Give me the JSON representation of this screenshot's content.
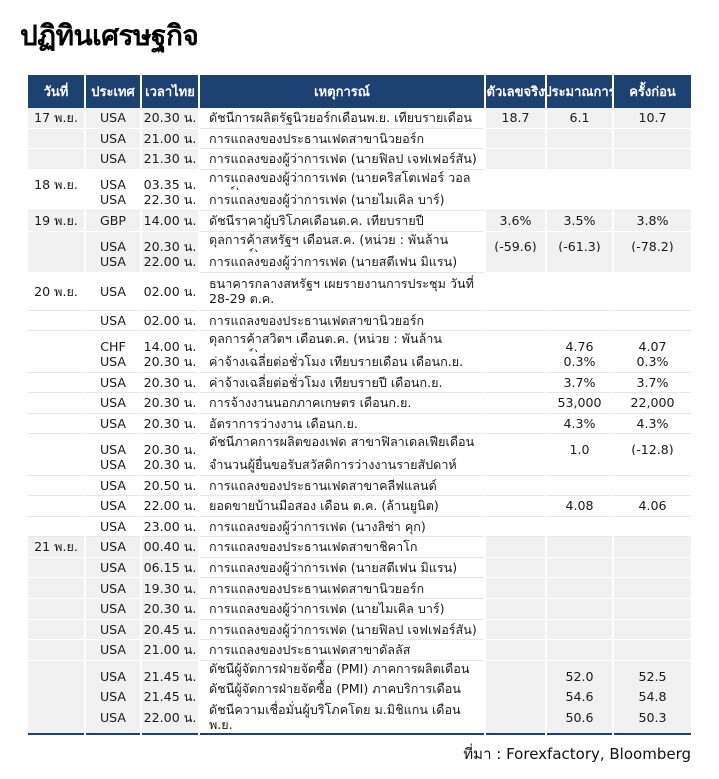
{
  "page": {
    "title": "ปฏิทินเศรษฐกิจ",
    "source": "ที่มา : Forexfactory, Bloomberg"
  },
  "colors": {
    "header_bg": "#1d4272",
    "shaded_row": "#f1f1f1",
    "row_separator": "#e7e7e7",
    "text": "#1a1a1a"
  },
  "table": {
    "columns": [
      {
        "key": "date",
        "label": "วันที่"
      },
      {
        "key": "country",
        "label": "ประเทศ"
      },
      {
        "key": "time",
        "label": "เวลาไทย"
      },
      {
        "key": "event",
        "label": "เหตุการณ์"
      },
      {
        "key": "actual",
        "label": "ตัวเลขจริง"
      },
      {
        "key": "forecast",
        "label": "ประมาณการ"
      },
      {
        "key": "previous",
        "label": "ครั้งก่อน"
      }
    ],
    "rows": [
      {
        "date": "17 พ.ย.",
        "country": "USA",
        "time": "20.30 น.",
        "event": "ดัชนีการผลิตรัฐนิวยอร์กเดือนพ.ย. เทียบรายเดือน",
        "actual": "18.7",
        "forecast": "6.1",
        "previous": "10.7"
      },
      {
        "date": "",
        "country": "USA",
        "time": "21.00 น.",
        "event": "การแถลงของประธานเฟดสาขานิวยอร์ก",
        "actual": "",
        "forecast": "",
        "previous": ""
      },
      {
        "date": "",
        "country": "USA",
        "time": "21.30 น.",
        "event": "การแถลงของผู้ว่าการเฟด (นายฟิลป เจฟเฟอร์สัน)",
        "actual": "",
        "forecast": "",
        "previous": ""
      },
      {
        "date": "18 พ.ย.",
        "country": "USA",
        "time": "03.35 น.",
        "event": "การแถลงของผู้ว่าการเฟด (นายคริสโตเฟอร์ วอลเลอร์)",
        "actual": "",
        "forecast": "",
        "previous": ""
      },
      {
        "date": "",
        "country": "USA",
        "time": "22.30 น.",
        "event": "การแถลงของผู้ว่าการเฟด (นายไมเคิล บาร์)",
        "actual": "",
        "forecast": "",
        "previous": ""
      },
      {
        "date": "19 พ.ย.",
        "country": "GBP",
        "time": "14.00 น.",
        "event": "ดัชนีราคาผู้บริโภคเดือนต.ค. เทียบรายปี",
        "actual": "3.6%",
        "forecast": "3.5%",
        "previous": "3.8%"
      },
      {
        "date": "",
        "country": "USA",
        "time": "20.30 น.",
        "event": "ดุลการค้าสหรัฐฯ เดือนส.ค. (หน่วย : พันล้านดอลลาร์)",
        "actual": "(-59.6)",
        "forecast": "(-61.3)",
        "previous": "(-78.2)"
      },
      {
        "date": "",
        "country": "USA",
        "time": "22.00 น.",
        "event": "การแถลงของผู้ว่าการเฟด (นายสตีเฟน มิแรน)",
        "actual": "",
        "forecast": "",
        "previous": ""
      },
      {
        "date": "20 พ.ย.",
        "country": "USA",
        "time": "02.00 น.",
        "event": "ธนาคารกลางสหรัฐฯ เผยรายงานการประชุม วันที่\n28-29 ต.ค.",
        "actual": "",
        "forecast": "",
        "previous": ""
      },
      {
        "date": "",
        "country": "USA",
        "time": "02.00 น.",
        "event": "การแถลงของประธานเฟดสาขานิวยอร์ก",
        "actual": "",
        "forecast": "",
        "previous": ""
      },
      {
        "date": "",
        "country": "CHF",
        "time": "14.00 น.",
        "event": "ดุลการค้าสวิตฯ เดือนต.ค. (หน่วย : พันล้านดอลลาร์)",
        "actual": "",
        "forecast": "4.76",
        "previous": "4.07"
      },
      {
        "date": "",
        "country": "USA",
        "time": "20.30 น.",
        "event": "ค่าจ้างเฉลี่ยต่อชั่วโมง เทียบรายเดือน เดือนก.ย.",
        "actual": "",
        "forecast": "0.3%",
        "previous": "0.3%"
      },
      {
        "date": "",
        "country": "USA",
        "time": "20.30 น.",
        "event": "ค่าจ้างเฉลี่ยต่อชั่วโมง เทียบรายปี เดือนก.ย.",
        "actual": "",
        "forecast": "3.7%",
        "previous": "3.7%"
      },
      {
        "date": "",
        "country": "USA",
        "time": "20.30 น.",
        "event": "การจ้างงานนอกภาคเกษตร เดือนก.ย.",
        "actual": "",
        "forecast": "53,000",
        "previous": "22,000"
      },
      {
        "date": "",
        "country": "USA",
        "time": "20.30 น.",
        "event": "อัตราการว่างงาน เดือนก.ย.",
        "actual": "",
        "forecast": "4.3%",
        "previous": "4.3%"
      },
      {
        "date": "",
        "country": "USA",
        "time": "20.30 น.",
        "event": "ดัชนีภาคการผลิตของเฟด สาขาฟิลาเดลเฟียเดือน พ.ย.",
        "actual": "",
        "forecast": "1.0",
        "previous": "(-12.8)"
      },
      {
        "date": "",
        "country": "USA",
        "time": "20.30 น.",
        "event": "จำนวนผู้ยื่นขอรับสวัสดิการว่างงานรายสัปดาห์",
        "actual": "",
        "forecast": "",
        "previous": ""
      },
      {
        "date": "",
        "country": "USA",
        "time": "20.50 น.",
        "event": "การแถลงของประธานเฟดสาขาคลีฟแลนด์",
        "actual": "",
        "forecast": "",
        "previous": ""
      },
      {
        "date": "",
        "country": "USA",
        "time": "22.00 น.",
        "event": "ยอดขายบ้านมือสอง เดือน ต.ค. (ล้านยูนิต)",
        "actual": "",
        "forecast": "4.08",
        "previous": "4.06"
      },
      {
        "date": "",
        "country": "USA",
        "time": "23.00 น.",
        "event": "การแถลงของผู้ว่าการเฟด (นางลิซ่า คุก)",
        "actual": "",
        "forecast": "",
        "previous": ""
      },
      {
        "date": "21 พ.ย.",
        "country": "USA",
        "time": "00.40 น.",
        "event": "การแถลงของประธานเฟดสาขาชิคาโก",
        "actual": "",
        "forecast": "",
        "previous": ""
      },
      {
        "date": "",
        "country": "USA",
        "time": "06.15 น.",
        "event": "การแถลงของผู้ว่าการเฟด (นายสตีเฟน มิแรน)",
        "actual": "",
        "forecast": "",
        "previous": ""
      },
      {
        "date": "",
        "country": "USA",
        "time": "19.30 น.",
        "event": "การแถลงของประธานเฟดสาขานิวยอร์ก",
        "actual": "",
        "forecast": "",
        "previous": ""
      },
      {
        "date": "",
        "country": "USA",
        "time": "20.30 น.",
        "event": "การแถลงของผู้ว่าการเฟด (นายไมเคิล บาร์)",
        "actual": "",
        "forecast": "",
        "previous": ""
      },
      {
        "date": "",
        "country": "USA",
        "time": "20.45 น.",
        "event": "การแถลงของผู้ว่าการเฟด (นายฟิลป เจฟเฟอร์สัน)",
        "actual": "",
        "forecast": "",
        "previous": ""
      },
      {
        "date": "",
        "country": "USA",
        "time": "21.00 น.",
        "event": "การแถลงของประธานเฟดสาขาดัลลัส",
        "actual": "",
        "forecast": "",
        "previous": ""
      },
      {
        "date": "",
        "country": "USA",
        "time": "21.45 น.",
        "event": "ดัชนีผู้จัดการฝ่ายจัดซื้อ (PMI) ภาคการผลิตเดือน พ.ย.",
        "actual": "",
        "forecast": "52.0",
        "previous": "52.5"
      },
      {
        "date": "",
        "country": "USA",
        "time": "21.45 น.",
        "event": "ดัชนีผู้จัดการฝ่ายจัดซื้อ (PMI) ภาคบริการเดือน พ.ย.",
        "actual": "",
        "forecast": "54.6",
        "previous": "54.8"
      },
      {
        "date": "",
        "country": "USA",
        "time": "22.00 น.",
        "event": "ดัชนีความเชื่อมั่นผู้บริโภคโดย ม.มิชิแกน เดือน พ.ย.",
        "actual": "",
        "forecast": "50.6",
        "previous": "50.3"
      }
    ]
  }
}
